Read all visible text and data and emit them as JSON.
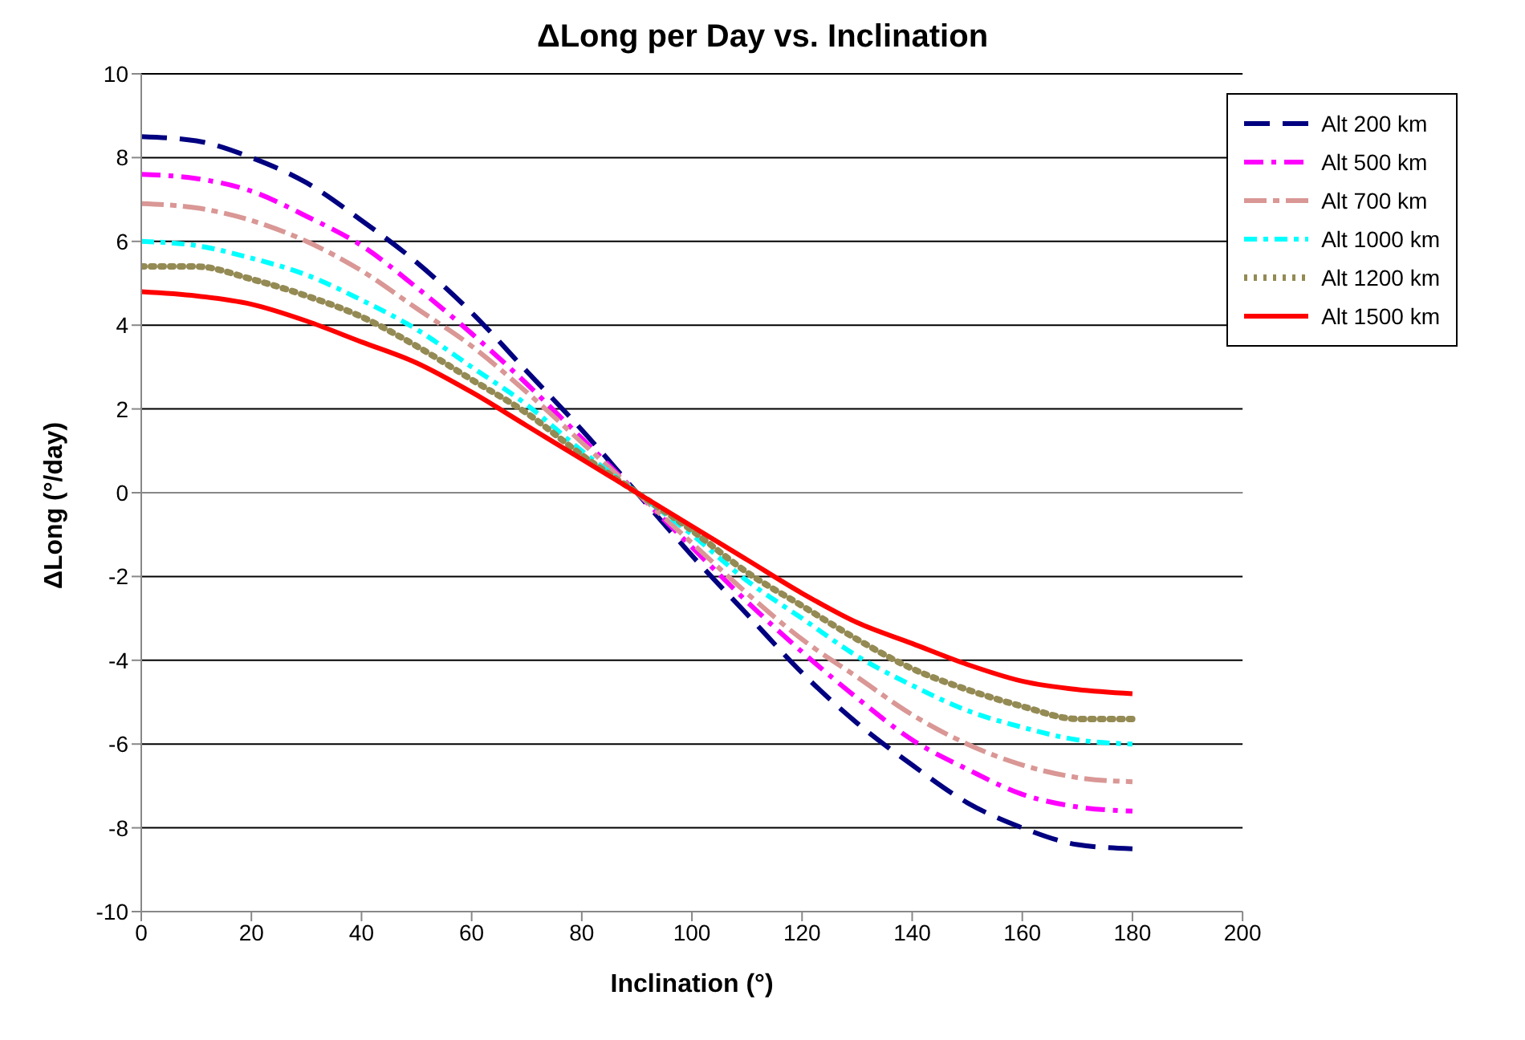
{
  "chart_data": {
    "type": "line",
    "title": "ΔLong per Day vs. Inclination",
    "xlabel": "Inclination (°)",
    "ylabel": "ΔLong (°/day)",
    "x": [
      0,
      10,
      20,
      30,
      40,
      50,
      60,
      70,
      80,
      90,
      100,
      110,
      120,
      130,
      140,
      150,
      160,
      170,
      180
    ],
    "xlim": [
      0,
      200
    ],
    "xticks": [
      0,
      20,
      40,
      60,
      80,
      100,
      120,
      140,
      160,
      180,
      200
    ],
    "ylim": [
      -10,
      10
    ],
    "yticks": [
      -10,
      -8,
      -6,
      -4,
      -2,
      0,
      2,
      4,
      6,
      8,
      10
    ],
    "grid": "y",
    "legend": "top right",
    "marker": "none",
    "series": [
      {
        "name": "Alt 200 km",
        "color": "#000080",
        "line_style": "dashed",
        "values": [
          8.5,
          8.4,
          8.0,
          7.4,
          6.5,
          5.5,
          4.3,
          2.9,
          1.5,
          0,
          -1.5,
          -2.9,
          -4.3,
          -5.5,
          -6.5,
          -7.4,
          -8.0,
          -8.4,
          -8.5
        ]
      },
      {
        "name": "Alt 500 km",
        "color": "#ff00ff",
        "line_style": "dashed",
        "values": [
          7.6,
          7.5,
          7.2,
          6.6,
          5.9,
          4.9,
          3.8,
          2.6,
          1.3,
          0,
          -1.3,
          -2.6,
          -3.8,
          -4.9,
          -5.9,
          -6.6,
          -7.2,
          -7.5,
          -7.6
        ]
      },
      {
        "name": "Alt 700 km",
        "color": "#d99795",
        "line_style": "dashed",
        "values": [
          6.9,
          6.8,
          6.5,
          6.0,
          5.3,
          4.4,
          3.5,
          2.4,
          1.2,
          0,
          -1.2,
          -2.4,
          -3.5,
          -4.4,
          -5.3,
          -6.0,
          -6.5,
          -6.8,
          -6.9
        ]
      },
      {
        "name": "Alt 1000 km",
        "color": "#00ffff",
        "line_style": "dashed",
        "values": [
          6.0,
          5.9,
          5.6,
          5.2,
          4.6,
          3.9,
          3.0,
          2.1,
          1.0,
          0,
          -1.0,
          -2.1,
          -3.0,
          -3.9,
          -4.6,
          -5.2,
          -5.6,
          -5.9,
          -6.0
        ]
      },
      {
        "name": "Alt 1200 km",
        "color": "#948a54",
        "line_style": "dotted",
        "values": [
          5.4,
          5.4,
          5.1,
          4.7,
          4.2,
          3.5,
          2.7,
          1.9,
          0.9,
          0,
          -0.9,
          -1.9,
          -2.7,
          -3.5,
          -4.2,
          -4.7,
          -5.1,
          -5.4,
          -5.4
        ]
      },
      {
        "name": "Alt 1500 km",
        "color": "#ff0000",
        "line_style": "solid",
        "values": [
          4.8,
          4.7,
          4.5,
          4.1,
          3.6,
          3.1,
          2.4,
          1.6,
          0.8,
          0,
          -0.8,
          -1.6,
          -2.4,
          -3.1,
          -3.6,
          -4.1,
          -4.5,
          -4.7,
          -4.8
        ]
      }
    ]
  }
}
